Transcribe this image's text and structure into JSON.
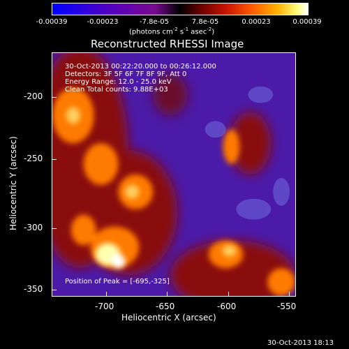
{
  "colorbar": {
    "ticks": [
      "-0.00039",
      "-0.00023",
      "-7.8e-05",
      "7.8e-05",
      "0.00023",
      "0.00039"
    ],
    "unit_label": "(photons cm",
    "unit_sup1": "-2",
    "unit_mid1": " s",
    "unit_sup2": "-1",
    "unit_mid2": " asec",
    "unit_sup3": "-2",
    "unit_end": ")"
  },
  "plot": {
    "title": "Reconstructed RHESSI Image",
    "xlabel": "Heliocentric X (arcsec)",
    "ylabel": "Heliocentric Y (arcsec)",
    "xticks": [
      "-700",
      "-650",
      "-600",
      "-550"
    ],
    "yticks": [
      "-200",
      "-250",
      "-300",
      "-350"
    ],
    "annotations": {
      "time_range": "30-Oct-2013 00:22:20.000 to 00:26:12.000",
      "detectors": "Detectors: 3F 5F 6F 7F 8F 9F, Att 0",
      "energy": "Energy Range: 12.0 - 25.0 keV",
      "method": "Clean     Total counts: 9.88E+03",
      "peak": "Position of Peak = [-695,-325]"
    },
    "colors": {
      "low": "#4b1aa8",
      "mid": "#8a1010",
      "high": "#ff7a00",
      "peak": "#ffffb0"
    }
  },
  "footer": {
    "timestamp": "30-Oct-2013 18:13"
  }
}
